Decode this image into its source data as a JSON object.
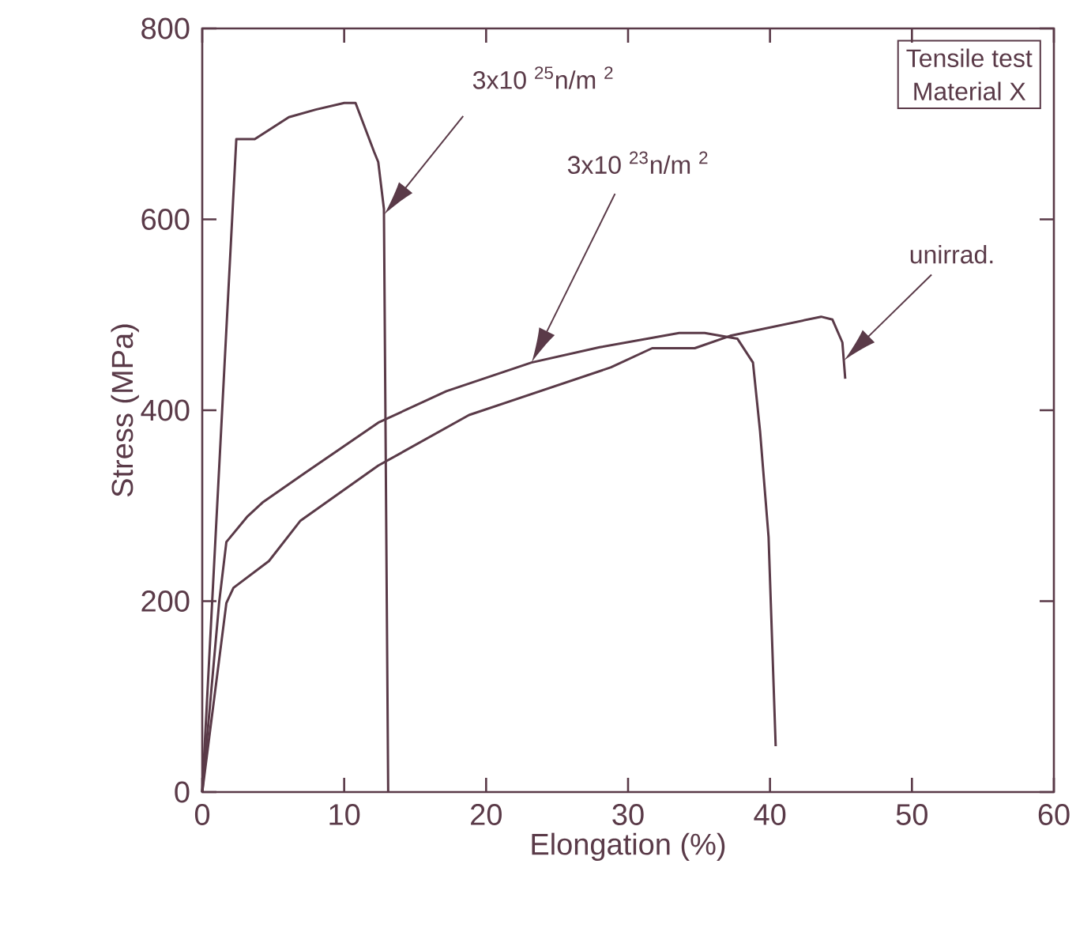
{
  "chart_data": {
    "type": "line",
    "xlabel": "Elongation  (%)",
    "ylabel": "Stress (MPa)",
    "xlim": [
      0,
      60
    ],
    "ylim": [
      0,
      800
    ],
    "xticks": [
      0,
      10,
      20,
      30,
      40,
      50,
      60
    ],
    "yticks": [
      0,
      200,
      400,
      600,
      800
    ],
    "grid": false,
    "marker": "none",
    "line_style": "solid",
    "series": [
      {
        "color": "#5a3a48",
        "x": [
          0,
          2.4,
          3.7,
          6.1,
          8,
          10,
          10.8,
          12.1,
          12.4,
          12.8,
          13.1
        ],
        "values": [
          0,
          684,
          684,
          707,
          715,
          722,
          722,
          671,
          660,
          611,
          0
        ]
      },
      {
        "color": "#5a3a48",
        "x": [
          0,
          1.2,
          1.7,
          3.2,
          4.3,
          7.2,
          12.4,
          17.2,
          23.2,
          28,
          33.6,
          35.4,
          37.7,
          38.8,
          39.3,
          39.9,
          40.4
        ],
        "values": [
          0,
          200,
          262,
          289,
          304,
          334,
          387,
          420,
          450,
          466,
          481,
          481,
          475,
          450,
          378,
          267,
          48
        ]
      },
      {
        "color": "#5a3a48",
        "x": [
          0,
          1.7,
          2.2,
          4.7,
          6.9,
          12.4,
          18.8,
          28.8,
          31.7,
          34.7,
          37.2,
          43.6,
          44.4,
          45.1,
          45.3
        ],
        "values": [
          0,
          198,
          214,
          242,
          284,
          342,
          395,
          445,
          465,
          465,
          478,
          498,
          495,
          471,
          433
        ]
      }
    ],
    "annotations": [
      "3x10 $^{25}$n/m $^{2}$",
      "3x10 $^{23}$n/m $^{2}$",
      "unirrad.",
      "Tensile test",
      "Material X"
    ]
  }
}
